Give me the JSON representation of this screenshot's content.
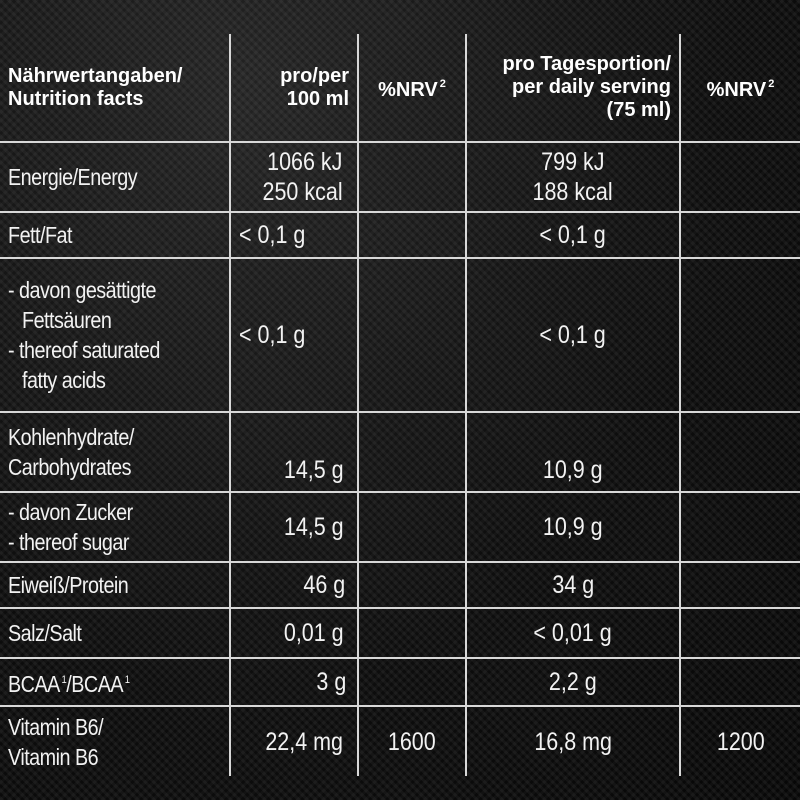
{
  "header": {
    "label_de": "Nährwertangaben/",
    "label_en": "Nutrition facts",
    "per100_l1": "pro/per",
    "per100_l2": "100 ml",
    "nrv_label": "%NRV",
    "nrv_sup": "2",
    "serving_l1": "pro Tagesportion/",
    "serving_l2": "per daily serving",
    "serving_l3": "(75 ml)"
  },
  "rows": {
    "energy": {
      "label": "Energie/Energy",
      "per100_kj": "1066 kJ",
      "per100_kcal": "250 kcal",
      "nrv100": "",
      "serving_kj": "799 kJ",
      "serving_kcal": "188 kcal",
      "nrv_serving": ""
    },
    "fat": {
      "label": "Fett/Fat",
      "per100": "< 0,1 g",
      "nrv100": "",
      "serving": "< 0,1 g",
      "nrv_serving": ""
    },
    "saturated": {
      "label_1": "- davon gesättigte",
      "label_2": "Fettsäuren",
      "label_3": "- thereof saturated",
      "label_4": "fatty acids",
      "per100": "< 0,1 g",
      "nrv100": "",
      "serving": "< 0,1 g",
      "nrv_serving": ""
    },
    "carbs": {
      "label_1": "Kohlenhydrate/",
      "label_2": "Carbohydrates",
      "per100": "14,5 g",
      "nrv100": "",
      "serving": "10,9 g",
      "nrv_serving": ""
    },
    "sugar": {
      "label_1": "- davon Zucker",
      "label_2": "- thereof sugar",
      "per100": "14,5 g",
      "nrv100": "",
      "serving": "10,9 g",
      "nrv_serving": ""
    },
    "protein": {
      "label": "Eiweiß/Protein",
      "per100": "46 g",
      "nrv100": "",
      "serving": "34 g",
      "nrv_serving": ""
    },
    "salt": {
      "label": "Salz/Salt",
      "per100": "0,01 g",
      "nrv100": "",
      "serving": "< 0,01 g",
      "nrv_serving": ""
    },
    "bcaa": {
      "label_a": "BCAA",
      "label_sup_a": "1",
      "label_b": "/BCAA",
      "label_sup_b": "1",
      "per100": "3 g",
      "nrv100": "",
      "serving": "2,2 g",
      "nrv_serving": ""
    },
    "vitb6": {
      "label_1": "Vitamin B6/",
      "label_2": "Vitamin B6",
      "per100": "22,4 mg",
      "nrv100": "1600",
      "serving": "16,8 mg",
      "nrv_serving": "1200"
    }
  }
}
